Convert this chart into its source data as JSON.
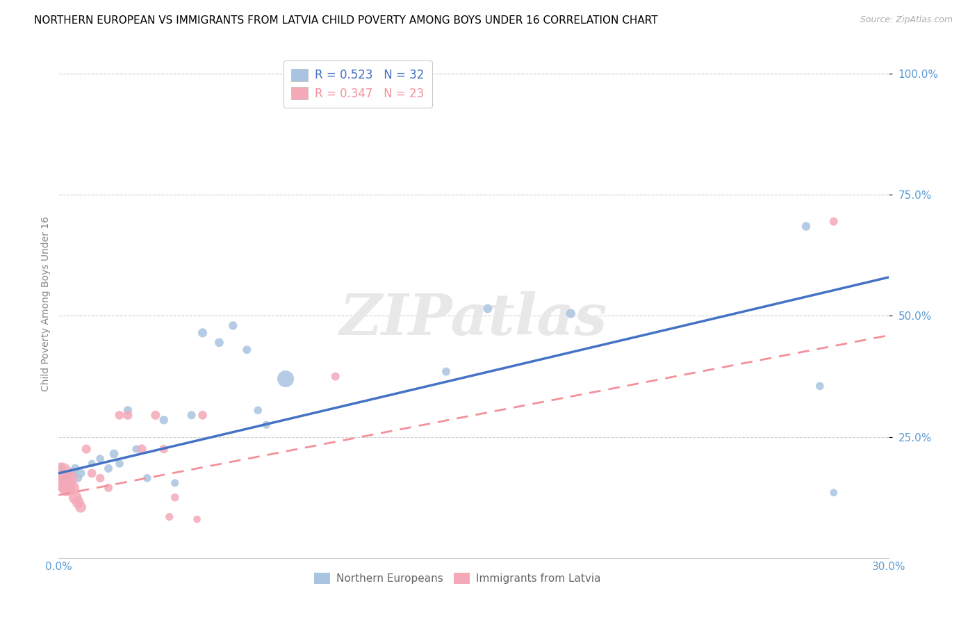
{
  "title": "NORTHERN EUROPEAN VS IMMIGRANTS FROM LATVIA CHILD POVERTY AMONG BOYS UNDER 16 CORRELATION CHART",
  "source": "Source: ZipAtlas.com",
  "ylabel": "Child Poverty Among Boys Under 16",
  "xlim": [
    0.0,
    0.3
  ],
  "ylim": [
    0.0,
    1.05
  ],
  "yticks": [
    0.25,
    0.5,
    0.75,
    1.0
  ],
  "ytick_labels": [
    "25.0%",
    "50.0%",
    "75.0%",
    "100.0%"
  ],
  "xticks": [
    0.0,
    0.05,
    0.1,
    0.15,
    0.2,
    0.25,
    0.3
  ],
  "xtick_labels": [
    "0.0%",
    "",
    "",
    "",
    "",
    "",
    "30.0%"
  ],
  "blue_x": [
    0.001,
    0.002,
    0.003,
    0.004,
    0.005,
    0.006,
    0.007,
    0.008,
    0.012,
    0.015,
    0.018,
    0.02,
    0.022,
    0.025,
    0.028,
    0.032,
    0.038,
    0.042,
    0.048,
    0.052,
    0.058,
    0.063,
    0.068,
    0.072,
    0.075,
    0.082,
    0.14,
    0.155,
    0.185,
    0.27,
    0.275,
    0.28
  ],
  "blue_y": [
    0.185,
    0.175,
    0.165,
    0.155,
    0.175,
    0.185,
    0.165,
    0.175,
    0.195,
    0.205,
    0.185,
    0.215,
    0.195,
    0.305,
    0.225,
    0.165,
    0.285,
    0.155,
    0.295,
    0.465,
    0.445,
    0.48,
    0.43,
    0.305,
    0.275,
    0.37,
    0.385,
    0.515,
    0.505,
    0.685,
    0.355,
    0.135
  ],
  "blue_sizes": [
    80,
    60,
    70,
    60,
    90,
    80,
    70,
    80,
    60,
    70,
    75,
    85,
    70,
    80,
    65,
    70,
    80,
    65,
    75,
    90,
    85,
    80,
    75,
    70,
    65,
    300,
    75,
    85,
    90,
    80,
    70,
    60
  ],
  "pink_x": [
    0.001,
    0.002,
    0.003,
    0.004,
    0.005,
    0.006,
    0.007,
    0.008,
    0.01,
    0.012,
    0.015,
    0.018,
    0.022,
    0.025,
    0.03,
    0.035,
    0.038,
    0.04,
    0.042,
    0.05,
    0.052,
    0.1,
    0.28
  ],
  "pink_y": [
    0.175,
    0.155,
    0.145,
    0.165,
    0.145,
    0.125,
    0.115,
    0.105,
    0.225,
    0.175,
    0.165,
    0.145,
    0.295,
    0.295,
    0.225,
    0.295,
    0.225,
    0.085,
    0.125,
    0.08,
    0.295,
    0.375,
    0.695
  ],
  "pink_sizes": [
    500,
    400,
    300,
    250,
    200,
    180,
    150,
    130,
    90,
    85,
    80,
    75,
    85,
    90,
    95,
    90,
    80,
    65,
    70,
    60,
    85,
    75,
    75
  ],
  "blue_color": "#a8c4e0",
  "pink_color": "#f4a8b8",
  "blue_line_color": "#4472c4",
  "pink_line_color": "#f4909a",
  "blue_R": "0.523",
  "blue_N": "32",
  "pink_R": "0.347",
  "pink_N": "23",
  "watermark_text": "ZIPatlas",
  "title_fontsize": 11,
  "label_fontsize": 10,
  "tick_fontsize": 11,
  "tick_color": "#5b9bd5",
  "grid_color": "#d0d0d0",
  "legend_top_labels": [
    "R = 0.523   N = 32",
    "R = 0.347   N = 23"
  ],
  "legend_bottom_labels": [
    "Northern Europeans",
    "Immigrants from Latvia"
  ]
}
